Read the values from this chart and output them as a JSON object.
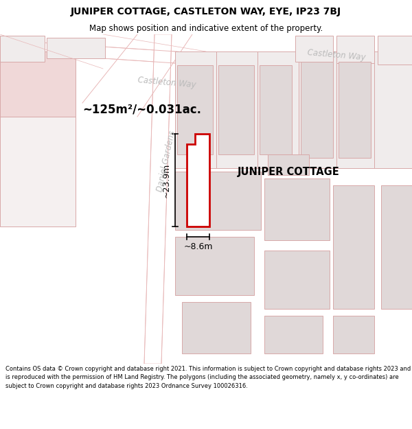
{
  "title": "JUNIPER COTTAGE, CASTLETON WAY, EYE, IP23 7BJ",
  "subtitle": "Map shows position and indicative extent of the property.",
  "footer": "Contains OS data © Crown copyright and database right 2021. This information is subject to Crown copyright and database rights 2023 and is reproduced with the permission of HM Land Registry. The polygons (including the associated geometry, namely x, y co-ordinates) are subject to Crown copyright and database rights 2023 Ordnance Survey 100026316.",
  "map_bg": "#ffffff",
  "title_bg": "#ffffff",
  "footer_bg": "#ffffff",
  "road_fill": "#f5e8e8",
  "road_edge": "#e8b8b8",
  "building_fill": "#e8e2e2",
  "building_edge": "#d8a8a8",
  "prop_fill": "#ffffff",
  "prop_edge": "#cc0000",
  "dim_color": "#000000",
  "label_color": "#000000",
  "street_color": "#bbbbbb",
  "left_pink_fill": "#f0d8d8",
  "area_text": "~125m²/~0.031ac.",
  "width_text": "~8.6m",
  "height_text": "~23.9m",
  "cottage_label": "JUNIPER COTTAGE",
  "street_castleton_left": "Castleton Way",
  "street_castleton_right": "Castleton Way",
  "street_daniel": "Daniel Gardens"
}
